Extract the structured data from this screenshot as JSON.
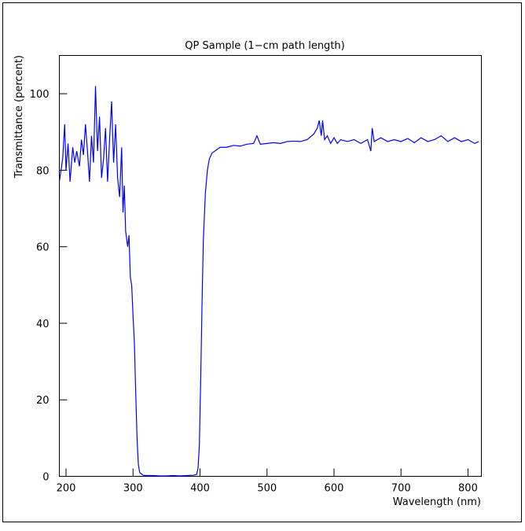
{
  "chart_data": {
    "type": "line",
    "title": "QP Sample (1−cm path length)",
    "x_label": "Wavelength (nm)",
    "y_label": "Transmittance (percent)",
    "color": "#0000ff",
    "xlim": [
      190,
      820
    ],
    "ylim": [
      0,
      110
    ],
    "xticks": [
      200,
      300,
      400,
      500,
      600,
      700,
      800
    ],
    "yticks": [
      0,
      20,
      40,
      60,
      80,
      100
    ],
    "x": [
      190,
      195,
      198,
      200,
      203,
      206,
      210,
      213,
      216,
      220,
      223,
      226,
      229,
      232,
      235,
      238,
      241,
      244,
      247,
      250,
      253,
      256,
      259,
      262,
      265,
      268,
      271,
      274,
      277,
      280,
      283,
      285,
      287,
      289,
      292,
      294,
      296,
      298,
      300,
      302,
      304,
      306,
      308,
      310,
      315,
      320,
      330,
      340,
      350,
      360,
      370,
      380,
      390,
      395,
      397,
      399,
      401,
      403,
      405,
      408,
      411,
      414,
      418,
      422,
      426,
      430,
      440,
      450,
      460,
      470,
      480,
      485,
      490,
      500,
      510,
      520,
      530,
      540,
      550,
      560,
      570,
      575,
      578,
      581,
      583,
      586,
      590,
      595,
      600,
      605,
      610,
      620,
      630,
      640,
      650,
      655,
      657,
      660,
      670,
      680,
      690,
      700,
      710,
      720,
      730,
      740,
      750,
      760,
      770,
      780,
      790,
      800,
      810,
      816
    ],
    "values": [
      77,
      83,
      92,
      80,
      87,
      77,
      86,
      82,
      85,
      81,
      88,
      84,
      92,
      85,
      77,
      89,
      82,
      102,
      85,
      94,
      78,
      83,
      91,
      77,
      88,
      98,
      82,
      92,
      78,
      73,
      86,
      69,
      76,
      64,
      60,
      63,
      52,
      50,
      42,
      35,
      22,
      10,
      3,
      1,
      0.3,
      0.2,
      0.2,
      0.1,
      0.1,
      0.2,
      0.1,
      0.2,
      0.3,
      0.5,
      2,
      8,
      25,
      45,
      62,
      74,
      80,
      83,
      84.5,
      85,
      85.5,
      86,
      86,
      86.5,
      86.3,
      86.8,
      87,
      89,
      86.8,
      87,
      87.2,
      87,
      87.5,
      87.6,
      87.5,
      88,
      89.5,
      91,
      93,
      89,
      93,
      88,
      89,
      87,
      88.5,
      87,
      88,
      87.5,
      88,
      87,
      88,
      85,
      91,
      87.5,
      88.5,
      87.5,
      88,
      87.5,
      88.3,
      87.2,
      88.5,
      87.5,
      88,
      89,
      87.5,
      88.5,
      87.5,
      88,
      87,
      87.5
    ]
  }
}
